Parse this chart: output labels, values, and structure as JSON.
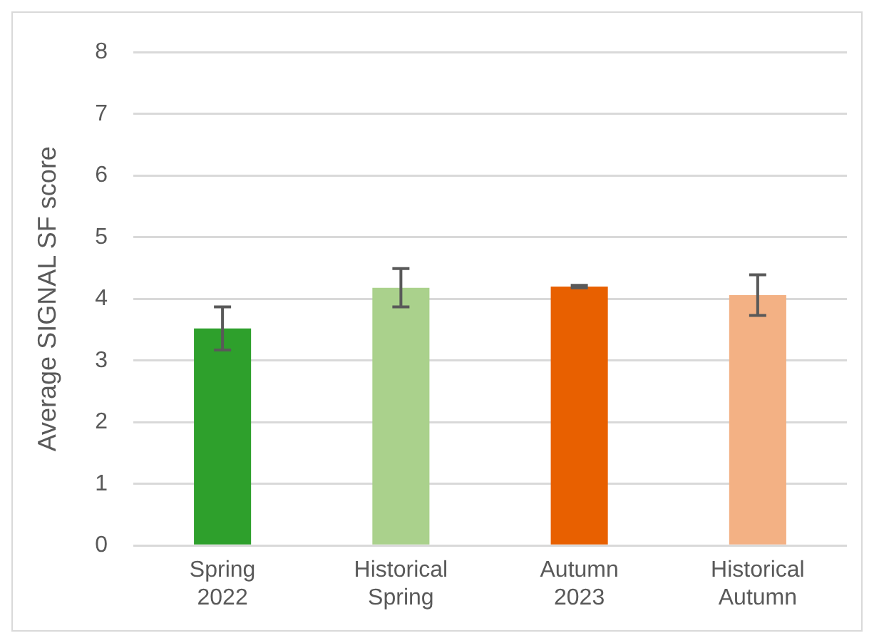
{
  "chart_data": {
    "type": "bar",
    "ylabel": "Average SIGNAL SF score",
    "categories": [
      "Spring 2022",
      "Historical Spring",
      "Autumn 2023",
      "Historical Autumn"
    ],
    "values": [
      3.52,
      4.18,
      4.2,
      4.06
    ],
    "colors": [
      "#2ea02c",
      "#aad18c",
      "#e86000",
      "#f3b184"
    ],
    "errors": [
      0.35,
      0.31,
      0.02,
      0.33
    ],
    "ylim": [
      0,
      8
    ],
    "yticks": [
      0,
      1,
      2,
      3,
      4,
      5,
      6,
      7,
      8
    ],
    "grid": "y",
    "legend": false
  }
}
